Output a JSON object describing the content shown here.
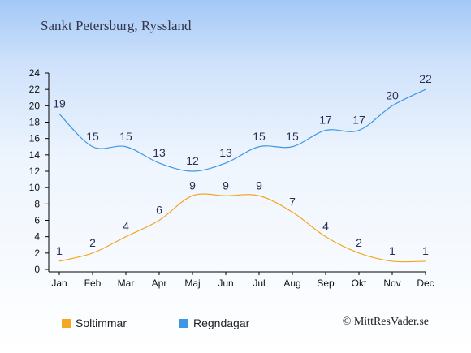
{
  "title": "Sankt Petersburg, Ryssland",
  "credit": "© MittResVader.se",
  "chart_data": {
    "type": "line",
    "title": "Sankt Petersburg, Ryssland",
    "categories": [
      "Jan",
      "Feb",
      "Mar",
      "Apr",
      "Maj",
      "Jun",
      "Jul",
      "Aug",
      "Sep",
      "Okt",
      "Nov",
      "Dec"
    ],
    "y_ticks": [
      "0",
      "2",
      "4",
      "6",
      "8",
      "10",
      "12",
      "14",
      "16",
      "18",
      "20",
      "22",
      "24"
    ],
    "ylim": [
      0,
      24
    ],
    "grid": false,
    "legend_position": "bottom-left",
    "series": [
      {
        "name": "Soltimmar",
        "color": "#f5a623",
        "values": [
          1,
          2,
          4,
          6,
          9,
          9,
          9,
          7,
          4,
          2,
          1,
          1
        ]
      },
      {
        "name": "Regndagar",
        "color": "#3d97e6",
        "values": [
          19,
          15,
          15,
          13,
          12,
          13,
          15,
          15,
          17,
          17,
          20,
          22
        ]
      }
    ]
  }
}
